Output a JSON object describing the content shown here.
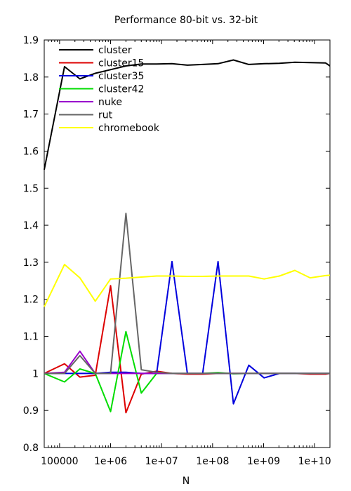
{
  "chart_data": {
    "type": "line",
    "title": "Performance 80-bit vs. 32-bit",
    "xlabel": "N",
    "ylabel": "",
    "x_scale": "log",
    "xlim": [
      50000,
      20000000000
    ],
    "ylim": [
      0.8,
      1.9
    ],
    "grid": false,
    "legend_position": "top-left",
    "y_ticks": [
      0.8,
      0.9,
      1.0,
      1.1,
      1.2,
      1.3,
      1.4,
      1.5,
      1.6,
      1.7,
      1.8,
      1.9
    ],
    "y_tick_labels": [
      "0.8",
      "0.9",
      "1",
      "1.1",
      "1.2",
      "1.3",
      "1.4",
      "1.5",
      "1.6",
      "1.7",
      "1.8",
      "1.9"
    ],
    "x_ticks": [
      100000,
      1000000,
      10000000,
      100000000,
      1000000000,
      10000000000
    ],
    "x_tick_labels": [
      "100000",
      "1e+06",
      "1e+07",
      "1e+08",
      "1e+09",
      "1e+10"
    ],
    "x": [
      50000,
      125000,
      250000,
      500000,
      1000000,
      2000000,
      4000000,
      8000000,
      16000000,
      32000000,
      64000000,
      128000000,
      256000000,
      512000000,
      1024000000,
      2048000000,
      4096000000,
      8192000000,
      16384000000,
      20000000000
    ],
    "series": [
      {
        "name": "cluster",
        "color": "#000000",
        "values": [
          1.55,
          1.828,
          1.795,
          1.81,
          1.82,
          1.83,
          1.835,
          1.835,
          1.836,
          1.832,
          1.834,
          1.836,
          1.846,
          1.834,
          1.836,
          1.837,
          1.84,
          1.839,
          1.838,
          1.83
        ]
      },
      {
        "name": "cluster15",
        "color": "#dd0000",
        "values": [
          1.0,
          1.026,
          0.99,
          0.995,
          1.237,
          0.894,
          0.998,
          1.006,
          1.0,
          0.998,
          0.998,
          1.0,
          1.0,
          1.0,
          1.0,
          1.0,
          1.0,
          0.998,
          0.998,
          1.0
        ]
      },
      {
        "name": "cluster35",
        "color": "#0000dd",
        "values": [
          1.0,
          1.0,
          1.0,
          1.0,
          1.003,
          1.003,
          1.0,
          1.0,
          1.302,
          1.0,
          1.0,
          1.302,
          0.918,
          1.022,
          0.988,
          1.0,
          1.0,
          1.0,
          1.0,
          1.0
        ]
      },
      {
        "name": "cluster42",
        "color": "#00dd00",
        "values": [
          1.0,
          0.977,
          1.012,
          1.0,
          0.897,
          1.113,
          0.947,
          1.0,
          1.0,
          1.0,
          1.0,
          1.002,
          0.999,
          1.0,
          1.0,
          1.0,
          1.0,
          1.0,
          1.0,
          1.0
        ]
      },
      {
        "name": "nuke",
        "color": "#9900cc",
        "values": [
          1.0,
          1.003,
          1.06,
          1.0,
          1.0,
          1.0,
          1.0,
          1.0,
          1.0,
          1.0,
          1.0,
          1.0,
          1.0,
          1.0,
          1.0,
          1.0,
          1.0,
          1.0,
          1.0,
          1.0
        ]
      },
      {
        "name": "rut",
        "color": "#666666",
        "values": [
          1.0,
          1.0,
          1.048,
          1.0,
          1.0,
          1.432,
          1.01,
          1.003,
          1.0,
          1.0,
          1.0,
          1.0,
          1.0,
          1.0,
          1.0,
          1.0,
          1.0,
          1.0,
          1.0,
          1.0
        ]
      },
      {
        "name": "chromebook",
        "color": "#ffff00",
        "values": [
          1.18,
          1.294,
          1.258,
          1.195,
          1.255,
          1.257,
          1.26,
          1.263,
          1.263,
          1.262,
          1.262,
          1.263,
          1.263,
          1.263,
          1.255,
          1.263,
          1.278,
          1.258,
          1.264,
          1.265
        ]
      }
    ]
  }
}
